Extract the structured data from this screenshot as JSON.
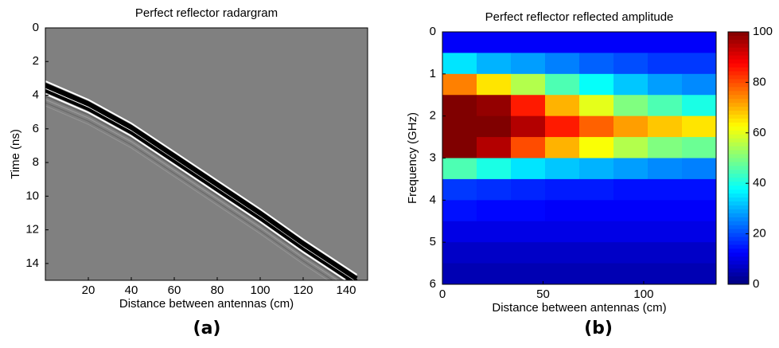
{
  "chart_data": [
    {
      "type": "radargram",
      "title": "Perfect reflector radargram",
      "caption": "(a)",
      "x_label": "Distance between antennas (cm)",
      "y_label": "Time (ns)",
      "xlim": [
        0,
        150
      ],
      "ylim": [
        0,
        15
      ],
      "y_reversed": true,
      "xticks": [
        20,
        40,
        60,
        80,
        100,
        120,
        140
      ],
      "yticks": [
        0,
        2,
        4,
        6,
        8,
        10,
        12,
        14
      ],
      "x": [
        0,
        20,
        40,
        60,
        80,
        100,
        120,
        145
      ],
      "values": [
        3.5,
        4.6,
        6.0,
        7.7,
        9.4,
        11.1,
        12.9,
        15
      ],
      "background": "#808080"
    },
    {
      "type": "heatmap",
      "title": "Perfect reflector reflected amplitude",
      "caption": "(b)",
      "x_label": "Distance between antennas (cm)",
      "y_label": "Frequency (GHz)",
      "xlim": [
        0,
        136
      ],
      "ylim": [
        0,
        6
      ],
      "y_reversed": true,
      "xticks": [
        0,
        50,
        100
      ],
      "yticks": [
        0,
        1,
        2,
        3,
        4,
        5,
        6
      ],
      "x_edges": [
        0,
        17,
        34,
        51,
        68,
        85,
        102,
        119,
        136
      ],
      "y_edges": [
        0,
        0.5,
        1,
        1.5,
        2,
        2.5,
        3,
        3.5,
        4,
        4.5,
        5,
        5.5,
        6
      ],
      "z": [
        [
          12,
          12,
          12,
          12,
          12,
          12,
          12,
          12
        ],
        [
          35,
          30,
          28,
          25,
          22,
          20,
          18,
          18
        ],
        [
          75,
          65,
          55,
          45,
          38,
          32,
          28,
          26
        ],
        [
          100,
          98,
          85,
          70,
          60,
          50,
          45,
          40
        ],
        [
          100,
          100,
          95,
          85,
          78,
          72,
          68,
          65
        ],
        [
          100,
          95,
          80,
          70,
          62,
          55,
          50,
          48
        ],
        [
          45,
          40,
          35,
          32,
          30,
          28,
          26,
          25
        ],
        [
          18,
          17,
          16,
          15,
          15,
          14,
          14,
          14
        ],
        [
          14,
          13,
          13,
          12,
          12,
          12,
          12,
          12
        ],
        [
          10,
          10,
          10,
          10,
          10,
          10,
          10,
          10
        ],
        [
          7,
          7,
          7,
          7,
          7,
          7,
          7,
          7
        ],
        [
          5,
          5,
          5,
          5,
          5,
          5,
          5,
          5
        ]
      ],
      "clim": [
        0,
        100
      ],
      "cticks": [
        0,
        20,
        40,
        60,
        80,
        100
      ],
      "colormap": "jet"
    }
  ]
}
